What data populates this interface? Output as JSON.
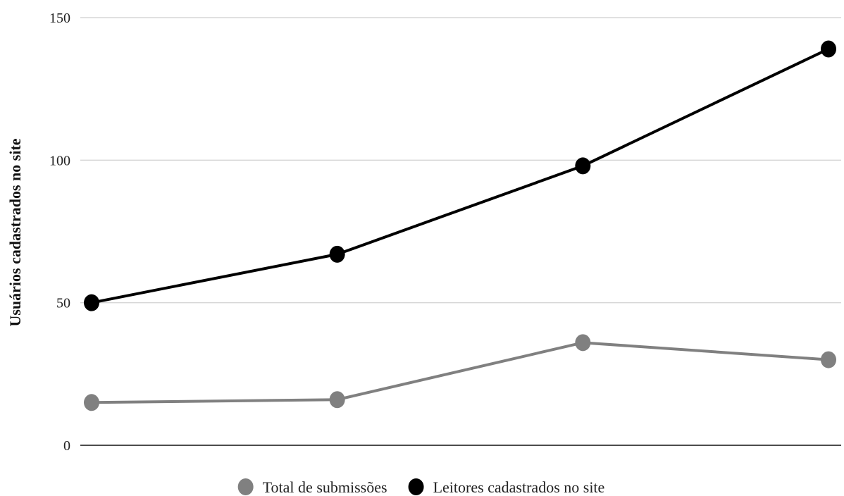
{
  "chart_data": {
    "type": "line",
    "title": "",
    "xlabel": "",
    "ylabel": "Usuários cadastrados no site",
    "ylim": [
      0,
      150
    ],
    "yticks": [
      0,
      50,
      100,
      150
    ],
    "grid": true,
    "legend": "bottom",
    "x": [
      1,
      2,
      3,
      4
    ],
    "series": [
      {
        "name": "Total de submissões",
        "color": "#808080",
        "values": [
          15,
          16,
          36,
          30
        ]
      },
      {
        "name": "Leitores cadastrados no site",
        "color": "#000000",
        "values": [
          50,
          67,
          98,
          139
        ]
      }
    ]
  }
}
